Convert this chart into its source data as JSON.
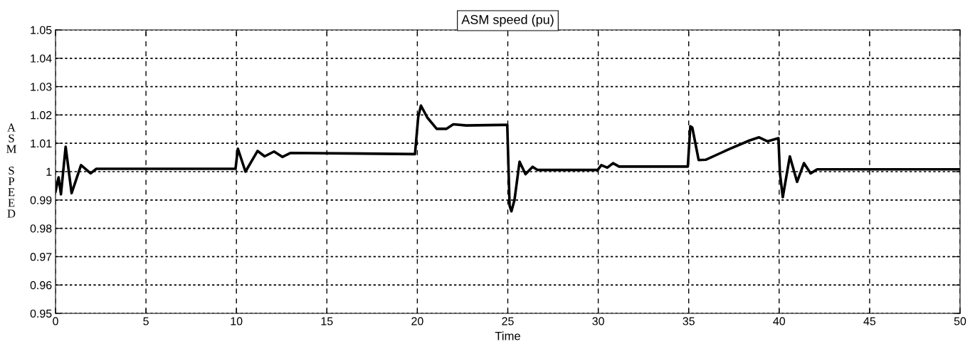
{
  "chart_data": {
    "type": "line",
    "title": "ASM speed (pu)",
    "xlabel": "Time",
    "ylabel": "ASM SPEED",
    "series": [
      {
        "color": "#000000",
        "x": [
          0,
          0.17,
          0.3,
          0.56,
          0.89,
          1.41,
          1.94,
          2.26,
          9.95,
          10.08,
          10.5,
          11.17,
          11.56,
          12.08,
          12.54,
          13.0,
          19.87,
          20.05,
          20.2,
          20.55,
          21.07,
          21.6,
          21.99,
          22.7,
          24.67,
          24.97,
          25.1,
          25.2,
          25.37,
          25.65,
          25.98,
          26.37,
          26.63,
          29.97,
          30.17,
          30.5,
          30.82,
          31.15,
          34.95,
          35.09,
          35.2,
          35.55,
          35.94,
          37.19,
          38.36,
          38.89,
          39.35,
          39.96,
          40.04,
          40.2,
          40.59,
          40.99,
          41.37,
          41.74,
          42.1,
          50
        ],
        "values": [
          0.993,
          0.998,
          0.992,
          1.0088,
          0.9924,
          1.0023,
          0.9994,
          1.001,
          1.001,
          1.0081,
          1.0,
          1.0073,
          1.0054,
          1.0071,
          1.0052,
          1.0066,
          1.0062,
          1.0193,
          1.0233,
          1.0191,
          1.0151,
          1.0151,
          1.0167,
          1.0163,
          1.0165,
          1.0165,
          0.988,
          0.986,
          0.99,
          1.0035,
          0.9991,
          1.0017,
          1.0006,
          1.0006,
          1.0023,
          1.0014,
          1.003,
          1.0018,
          1.0018,
          1.016,
          1.0155,
          1.0041,
          1.0042,
          1.0078,
          1.011,
          1.0121,
          1.0107,
          1.0118,
          0.9996,
          0.991,
          1.0054,
          0.9964,
          1.003,
          0.9994,
          1.0008,
          1.0008
        ]
      }
    ],
    "xlim": [
      0,
      50
    ],
    "xticks": [
      0,
      5,
      10,
      15,
      20,
      25,
      30,
      35,
      40,
      45,
      50
    ],
    "ylim": [
      0.95,
      1.05
    ],
    "yticks": [
      0.95,
      0.96,
      0.97,
      0.98,
      0.99,
      {
        "value": 1.0,
        "label": "1"
      },
      1.01,
      1.02,
      1.03,
      1.04,
      1.05
    ],
    "grid": true,
    "line_style": "solid",
    "marker": "none",
    "legend": false
  }
}
